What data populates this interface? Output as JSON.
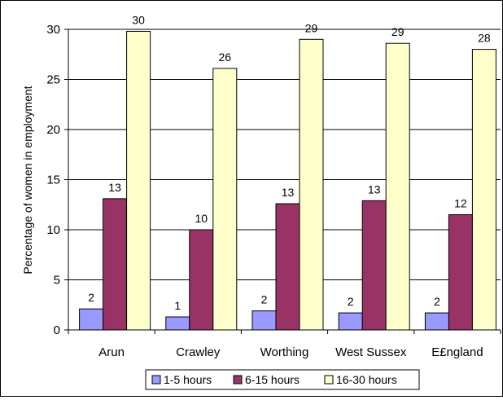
{
  "chart_data": {
    "type": "bar",
    "title": "",
    "xlabel": "",
    "ylabel": "Percentage of women in employment",
    "ylim": [
      0,
      30
    ],
    "yticks": [
      0,
      5,
      10,
      15,
      20,
      25,
      30
    ],
    "grid": true,
    "legend_position": "bottom",
    "categories": [
      "Arun",
      "Crawley",
      "Worthing",
      "West Sussex",
      "E£ngland"
    ],
    "series": [
      {
        "name": "1-5 hours",
        "color": "#9999ff",
        "values": [
          2.1,
          1.3,
          1.9,
          1.7,
          1.7
        ],
        "labels": [
          "2",
          "1",
          "2",
          "2",
          "2"
        ]
      },
      {
        "name": "6-15 hours",
        "color": "#993366",
        "values": [
          13.1,
          10.0,
          12.6,
          12.9,
          11.5
        ],
        "labels": [
          "13",
          "10",
          "13",
          "13",
          "12"
        ]
      },
      {
        "name": "16-30 hours",
        "color": "#ffffcc",
        "values": [
          29.8,
          26.1,
          29.0,
          28.6,
          28.0
        ],
        "labels": [
          "30",
          "26",
          "29",
          "29",
          "28"
        ]
      }
    ]
  }
}
